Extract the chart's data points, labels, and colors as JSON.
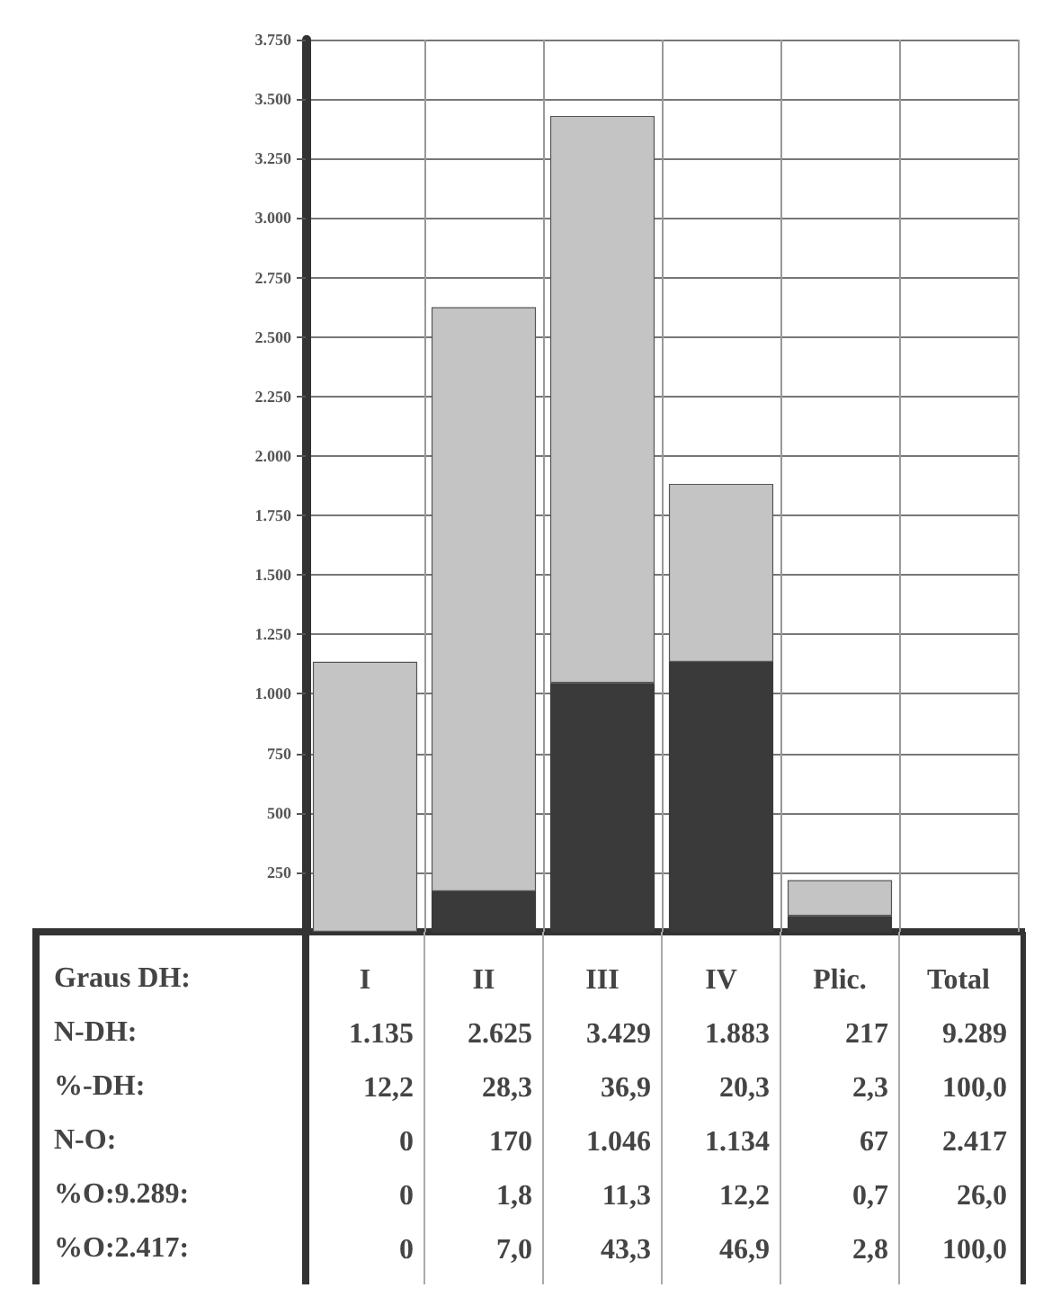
{
  "chart_data": {
    "type": "bar",
    "xlabel": "Graus DH:",
    "stacked": true,
    "categories": [
      "I",
      "II",
      "III",
      "IV",
      "Plic.",
      "Total"
    ],
    "series": [
      {
        "color": "#3a3a3a",
        "values": [
          0,
          170,
          1046,
          1134,
          67,
          null
        ]
      },
      {
        "color": "#c4c4c4",
        "values": [
          1135,
          2455,
          2383,
          749,
          150,
          null
        ]
      }
    ],
    "annotations": [
      "N-DH:",
      "1.135",
      "2.625",
      "3.429",
      "1.883",
      "217",
      "9.289",
      "%-DH:",
      "12,2",
      "28,3",
      "36,9",
      "20,3",
      "2,3",
      "100,0",
      "N-O:",
      "0",
      "170",
      "1.046",
      "1.134",
      "67",
      "2.417",
      "%O:9.289:",
      "0",
      "1,8",
      "11,3",
      "12,2",
      "0,7",
      "26,0",
      "%O:2.417:",
      "0",
      "7,0",
      "43,3",
      "46,9",
      "2,8",
      "100,0"
    ],
    "ylim": [
      0,
      3750
    ],
    "yticks": [
      {
        "value": 250,
        "label": "250"
      },
      {
        "value": 500,
        "label": "500"
      },
      {
        "value": 750,
        "label": "750"
      },
      {
        "value": 1000,
        "label": "1.000"
      },
      {
        "value": 1250,
        "label": "1.250"
      },
      {
        "value": 1500,
        "label": "1.500"
      },
      {
        "value": 1750,
        "label": "1.750"
      },
      {
        "value": 2000,
        "label": "2.000"
      },
      {
        "value": 2250,
        "label": "2.250"
      },
      {
        "value": 2500,
        "label": "2.500"
      },
      {
        "value": 2750,
        "label": "2.750"
      },
      {
        "value": 3000,
        "label": "3.000"
      },
      {
        "value": 3250,
        "label": "3.250"
      },
      {
        "value": 3500,
        "label": "3.500"
      },
      {
        "value": 3750,
        "label": "3.750"
      }
    ],
    "grid": true
  }
}
